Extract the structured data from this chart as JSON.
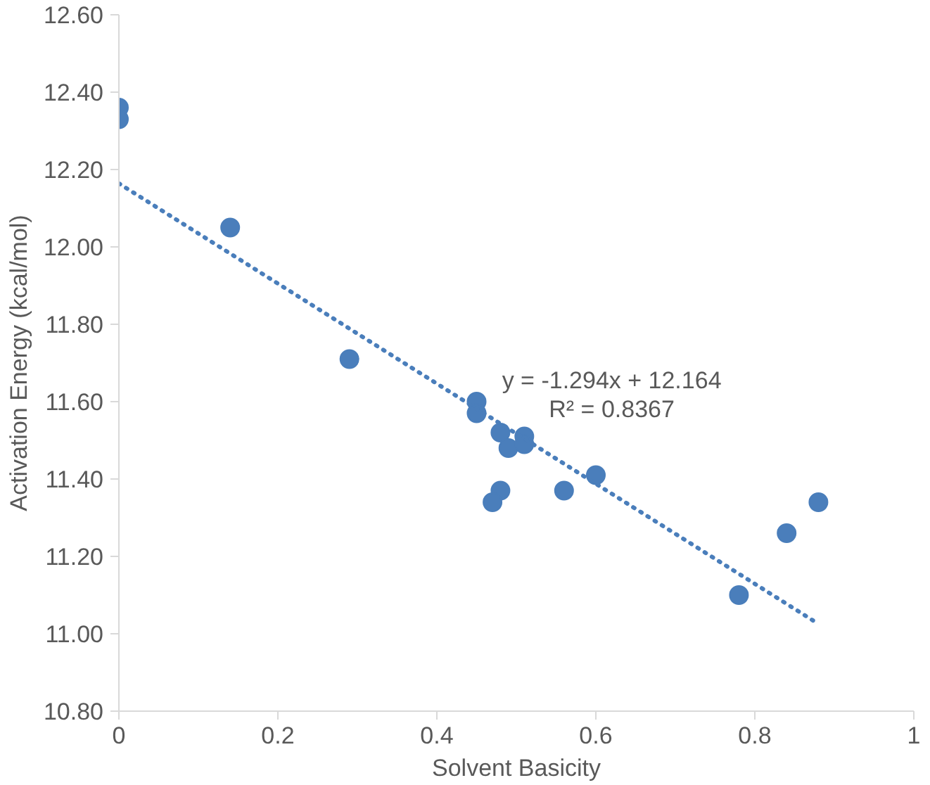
{
  "chart_data": {
    "type": "scatter",
    "xlabel": "Solvent Basicity",
    "ylabel": "Activation Energy (kcal/mol)",
    "xlim": [
      0,
      1
    ],
    "xticks": [
      0,
      0.2,
      0.4,
      0.6,
      0.8,
      1
    ],
    "ylim": [
      10.8,
      12.6
    ],
    "yticks": [
      {
        "value": 10.8,
        "label": "10.80"
      },
      {
        "value": 11.0,
        "label": "11.00"
      },
      {
        "value": 11.2,
        "label": "11.20"
      },
      {
        "value": 11.4,
        "label": "11.40"
      },
      {
        "value": 11.6,
        "label": "11.60"
      },
      {
        "value": 11.8,
        "label": "11.80"
      },
      {
        "value": 12.0,
        "label": "12.00"
      },
      {
        "value": 12.2,
        "label": "12.20"
      },
      {
        "value": 12.4,
        "label": "12.40"
      },
      {
        "value": 12.6,
        "label": "12.60"
      }
    ],
    "grid": false,
    "marker": "circle",
    "annotations": [
      "y = -1.294x + 12.164",
      "R² = 0.8367"
    ],
    "series": [
      {
        "color": "#4a7ebb",
        "x": [
          0,
          0,
          0.14,
          0.29,
          0.45,
          0.45,
          0.48,
          0.49,
          0.51,
          0.51,
          0.48,
          0.47,
          0.56,
          0.6,
          0.78,
          0.84,
          0.88
        ],
        "values": [
          12.36,
          12.33,
          12.05,
          11.71,
          11.6,
          11.57,
          11.52,
          11.48,
          11.51,
          11.49,
          11.37,
          11.34,
          11.37,
          11.41,
          11.1,
          11.26,
          11.34
        ]
      },
      {
        "type": "line",
        "line_style": "dotted",
        "marker": "none",
        "color": "#4a7ebb",
        "x": [
          0,
          0.875
        ],
        "values": [
          12.164,
          11.032
        ]
      }
    ]
  }
}
